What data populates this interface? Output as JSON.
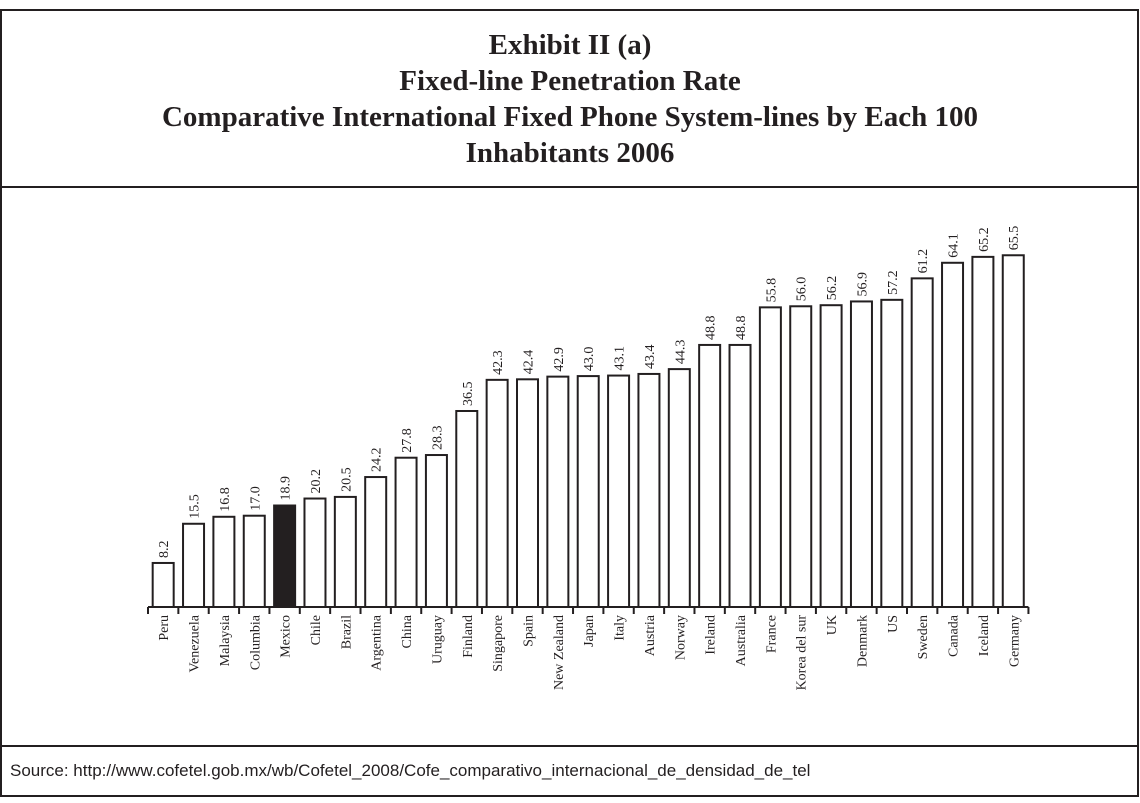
{
  "chart_data": {
    "type": "bar",
    "title": [
      "Exhibit II (a)",
      "Fixed-line Penetration Rate",
      "Comparative International Fixed Phone System-lines by Each 100",
      "Inhabitants 2006"
    ],
    "categories": [
      "Peru",
      "Venezuela",
      "Malaysia",
      "Columbia",
      "Mexico",
      "Chile",
      "Brazil",
      "Argentina",
      "China",
      "Uruguay",
      "Finland",
      "Singapore",
      "Spain",
      "New Zealand",
      "Japan",
      "Italy",
      "Austria",
      "Norway",
      "Ireland",
      "Australia",
      "France",
      "Korea del sur",
      "UK",
      "Denmark",
      "US",
      "Sweden",
      "Canada",
      "Iceland",
      "Germany"
    ],
    "values": [
      8.2,
      15.5,
      16.8,
      17.0,
      18.9,
      20.2,
      20.5,
      24.2,
      27.8,
      28.3,
      36.5,
      42.3,
      42.4,
      42.9,
      43.0,
      43.1,
      43.4,
      44.3,
      48.8,
      48.8,
      55.8,
      56.0,
      56.2,
      56.9,
      57.2,
      61.2,
      64.1,
      65.2,
      65.5
    ],
    "value_labels": [
      "8.2",
      "15.5",
      "16.8",
      "17.0",
      "18.9",
      "20.2",
      "20.5",
      "24.2",
      "27.8",
      "28.3",
      "36.5",
      "42.3",
      "42.4",
      "42.9",
      "43.0",
      "43.1",
      "43.4",
      "44.3",
      "48.8",
      "48.8",
      "55.8",
      "56.0",
      "56.2",
      "56.9",
      "57.2",
      "61.2",
      "64.1",
      "65.2",
      "65.5"
    ],
    "colors": [
      "#ffffff",
      "#ffffff",
      "#ffffff",
      "#ffffff",
      "#231f20",
      "#ffffff",
      "#ffffff",
      "#ffffff",
      "#ffffff",
      "#ffffff",
      "#ffffff",
      "#ffffff",
      "#ffffff",
      "#ffffff",
      "#ffffff",
      "#ffffff",
      "#ffffff",
      "#ffffff",
      "#ffffff",
      "#ffffff",
      "#ffffff",
      "#ffffff",
      "#ffffff",
      "#ffffff",
      "#ffffff",
      "#ffffff",
      "#ffffff",
      "#ffffff",
      "#ffffff"
    ],
    "source": "Source: http://www.cofetel.gob.mx/wb/Cofetel_2008/Cofe_comparativo_internacional_de_densidad_de_tel"
  }
}
